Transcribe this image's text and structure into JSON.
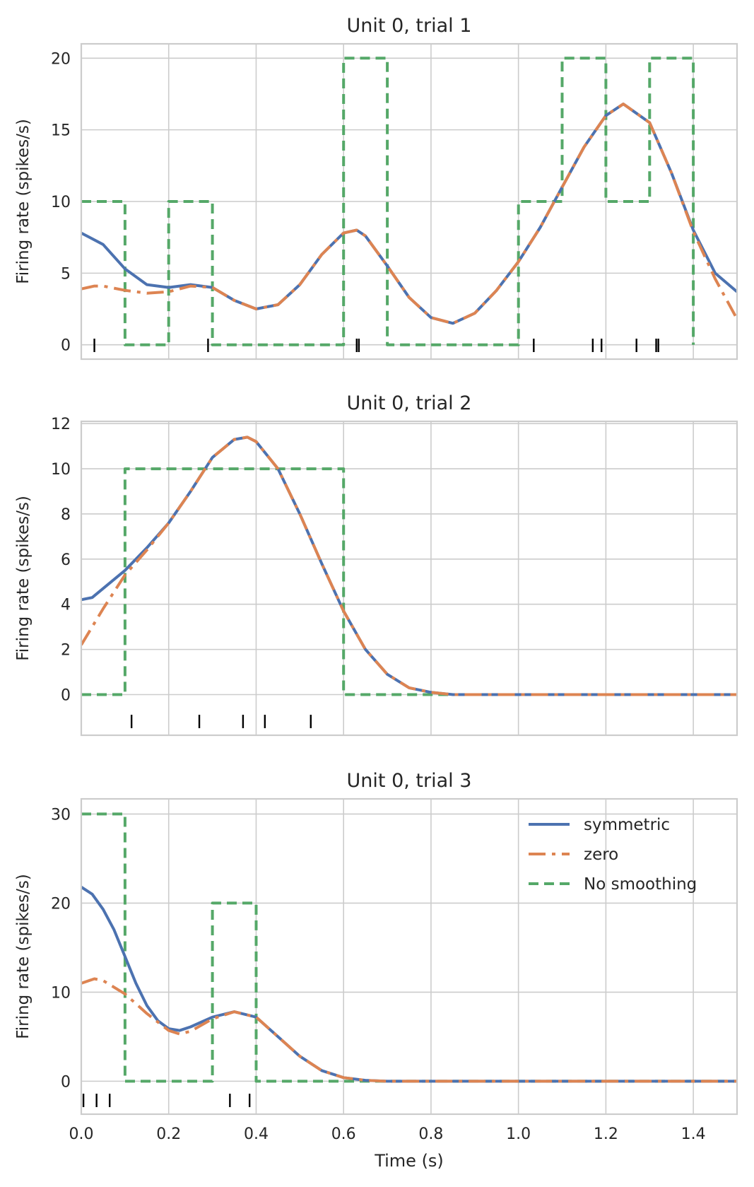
{
  "figure": {
    "xlabel": "Time (s)",
    "legend": {
      "placement": "top-right (bottom panel)",
      "entries": [
        {
          "label": "symmetric",
          "color": "#4c72b0",
          "style": "solid"
        },
        {
          "label": "zero",
          "color": "#dd8452",
          "style": "dashdot"
        },
        {
          "label": "No smoothing",
          "color": "#55a868",
          "style": "dashed"
        }
      ]
    },
    "colors": {
      "grid": "#cccccc",
      "spine": "#cccccc",
      "text": "#262626",
      "spike": "#000000"
    }
  },
  "chart_data": [
    {
      "type": "line",
      "title": "Unit 0, trial 1",
      "xlabel": "",
      "ylabel": "Firing rate (spikes/s)",
      "xlim": [
        0,
        1.5
      ],
      "ylim": [
        -1,
        21
      ],
      "xticks": [
        0.0,
        0.2,
        0.4,
        0.6,
        0.8,
        1.0,
        1.2,
        1.4
      ],
      "xtick_labels": [],
      "yticks": [
        0,
        5,
        10,
        15,
        20
      ],
      "ytick_labels": [
        "0",
        "5",
        "10",
        "15",
        "20"
      ],
      "grid": true,
      "spikes": [
        0.03,
        0.29,
        0.63,
        0.635,
        1.035,
        1.17,
        1.19,
        1.27,
        1.315,
        1.32
      ],
      "series": [
        {
          "name": "symmetric",
          "x": [
            0,
            0.05,
            0.1,
            0.15,
            0.2,
            0.25,
            0.3,
            0.35,
            0.4,
            0.45,
            0.5,
            0.55,
            0.6,
            0.63,
            0.65,
            0.7,
            0.75,
            0.8,
            0.85,
            0.9,
            0.95,
            1.0,
            1.05,
            1.1,
            1.15,
            1.2,
            1.24,
            1.3,
            1.35,
            1.4,
            1.45,
            1.5
          ],
          "values": [
            7.8,
            7.0,
            5.3,
            4.2,
            4.0,
            4.2,
            4.0,
            3.1,
            2.5,
            2.8,
            4.2,
            6.3,
            7.8,
            8.0,
            7.6,
            5.5,
            3.3,
            1.9,
            1.5,
            2.2,
            3.8,
            5.8,
            8.2,
            11.0,
            13.8,
            16.0,
            16.8,
            15.5,
            12.0,
            8.0,
            5.0,
            3.7
          ]
        },
        {
          "name": "zero",
          "x": [
            0,
            0.03,
            0.05,
            0.1,
            0.15,
            0.2,
            0.25,
            0.3,
            0.35,
            0.4,
            0.45,
            0.5,
            0.55,
            0.6,
            0.63,
            0.65,
            0.7,
            0.75,
            0.8,
            0.85,
            0.9,
            0.95,
            1.0,
            1.05,
            1.1,
            1.15,
            1.2,
            1.24,
            1.3,
            1.35,
            1.4,
            1.45,
            1.5
          ],
          "values": [
            3.9,
            4.1,
            4.1,
            3.8,
            3.6,
            3.7,
            4.1,
            4.0,
            3.1,
            2.5,
            2.8,
            4.2,
            6.3,
            7.8,
            8.0,
            7.6,
            5.5,
            3.3,
            1.9,
            1.5,
            2.2,
            3.8,
            5.8,
            8.2,
            11.0,
            13.8,
            16.0,
            16.8,
            15.5,
            12.0,
            7.9,
            4.6,
            1.8
          ]
        },
        {
          "name": "No smoothing",
          "x": [
            0,
            0.1,
            0.1,
            0.2,
            0.2,
            0.3,
            0.3,
            0.6,
            0.6,
            0.7,
            0.7,
            1.0,
            1.0,
            1.1,
            1.1,
            1.2,
            1.2,
            1.3,
            1.3,
            1.4,
            1.4
          ],
          "values": [
            10,
            10,
            0,
            0,
            10,
            10,
            0,
            0,
            20,
            20,
            0,
            0,
            10,
            10,
            20,
            20,
            10,
            10,
            20,
            20,
            0
          ]
        }
      ]
    },
    {
      "type": "line",
      "title": "Unit 0, trial 2",
      "xlabel": "",
      "ylabel": "Firing rate (spikes/s)",
      "xlim": [
        0,
        1.5
      ],
      "ylim": [
        -1.8,
        12.1
      ],
      "xticks": [
        0.0,
        0.2,
        0.4,
        0.6,
        0.8,
        1.0,
        1.2,
        1.4
      ],
      "xtick_labels": [],
      "yticks": [
        0,
        2,
        4,
        6,
        8,
        10,
        12
      ],
      "ytick_labels": [
        "0",
        "2",
        "4",
        "6",
        "8",
        "10",
        "12"
      ],
      "grid": true,
      "spikes": [
        0.115,
        0.27,
        0.37,
        0.42,
        0.525
      ],
      "series": [
        {
          "name": "symmetric",
          "x": [
            0,
            0.025,
            0.05,
            0.1,
            0.15,
            0.2,
            0.25,
            0.3,
            0.35,
            0.38,
            0.4,
            0.45,
            0.5,
            0.55,
            0.6,
            0.65,
            0.7,
            0.75,
            0.8,
            0.85,
            1.0,
            1.2,
            1.5
          ],
          "values": [
            4.2,
            4.3,
            4.7,
            5.5,
            6.5,
            7.6,
            9.0,
            10.5,
            11.3,
            11.4,
            11.2,
            10.0,
            8.0,
            5.8,
            3.7,
            2.0,
            0.9,
            0.3,
            0.1,
            0.0,
            0.0,
            0.0,
            0.0
          ]
        },
        {
          "name": "zero",
          "x": [
            0,
            0.05,
            0.1,
            0.15,
            0.2,
            0.25,
            0.3,
            0.35,
            0.38,
            0.4,
            0.45,
            0.5,
            0.55,
            0.6,
            0.65,
            0.7,
            0.75,
            0.8,
            0.85,
            1.0,
            1.2,
            1.5
          ],
          "values": [
            2.2,
            3.8,
            5.3,
            6.4,
            7.6,
            9.0,
            10.5,
            11.3,
            11.4,
            11.2,
            10.0,
            8.0,
            5.8,
            3.7,
            2.0,
            0.9,
            0.3,
            0.1,
            0.0,
            0.0,
            0.0,
            0.0
          ]
        },
        {
          "name": "No smoothing",
          "x": [
            0,
            0.1,
            0.1,
            0.6,
            0.6,
            1.5
          ],
          "values": [
            0,
            0,
            10,
            10,
            0,
            0
          ]
        }
      ]
    },
    {
      "type": "line",
      "title": "Unit 0, trial 3",
      "xlabel": "Time (s)",
      "ylabel": "Firing rate (spikes/s)",
      "xlim": [
        0,
        1.5
      ],
      "ylim": [
        -3.7,
        31.7
      ],
      "xticks": [
        0.0,
        0.2,
        0.4,
        0.6,
        0.8,
        1.0,
        1.2,
        1.4
      ],
      "xtick_labels": [
        "0.0",
        "0.2",
        "0.4",
        "0.6",
        "0.8",
        "1.0",
        "1.2",
        "1.4"
      ],
      "yticks": [
        0,
        10,
        20,
        30
      ],
      "ytick_labels": [
        "0",
        "10",
        "20",
        "30"
      ],
      "grid": true,
      "spikes": [
        0.005,
        0.035,
        0.065,
        0.34,
        0.385
      ],
      "series": [
        {
          "name": "symmetric",
          "x": [
            0,
            0.025,
            0.05,
            0.075,
            0.1,
            0.125,
            0.15,
            0.175,
            0.2,
            0.225,
            0.25,
            0.3,
            0.35,
            0.4,
            0.45,
            0.5,
            0.55,
            0.6,
            0.65,
            0.7,
            0.8,
            1.0,
            1.5
          ],
          "values": [
            21.8,
            21.0,
            19.3,
            17.0,
            14.0,
            11.0,
            8.5,
            6.8,
            5.9,
            5.7,
            6.1,
            7.2,
            7.8,
            7.2,
            5.0,
            2.8,
            1.2,
            0.4,
            0.1,
            0.0,
            0.0,
            0.0,
            0.0
          ]
        },
        {
          "name": "zero",
          "x": [
            0,
            0.03,
            0.05,
            0.1,
            0.15,
            0.2,
            0.225,
            0.25,
            0.3,
            0.35,
            0.4,
            0.45,
            0.5,
            0.55,
            0.6,
            0.65,
            0.7,
            0.8,
            1.0,
            1.5
          ],
          "values": [
            11.0,
            11.5,
            11.3,
            9.8,
            7.6,
            5.7,
            5.3,
            5.6,
            7.0,
            7.8,
            7.2,
            5.0,
            2.8,
            1.2,
            0.4,
            0.1,
            0.0,
            0.0,
            0.0,
            0.0
          ]
        },
        {
          "name": "No smoothing",
          "x": [
            0,
            0.1,
            0.1,
            0.3,
            0.3,
            0.4,
            0.4,
            1.5
          ],
          "values": [
            30,
            30,
            0,
            0,
            20,
            20,
            0,
            0
          ]
        }
      ]
    }
  ]
}
